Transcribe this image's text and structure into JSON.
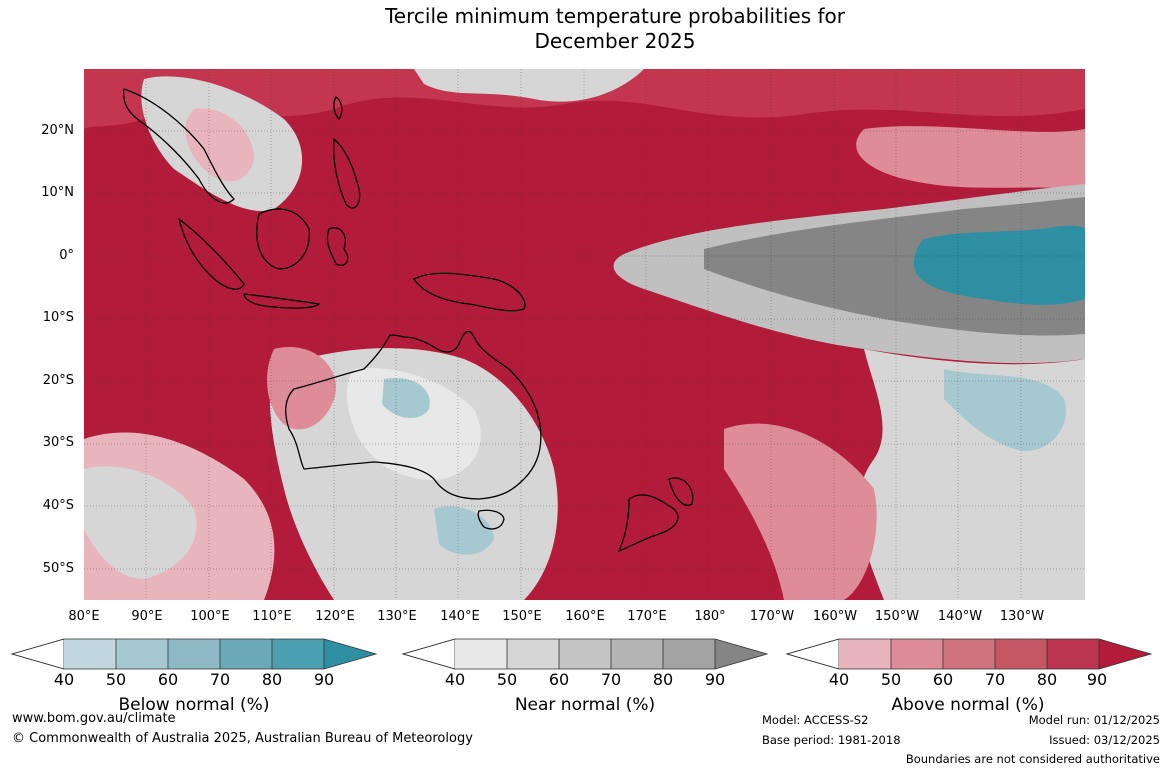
{
  "title": {
    "line1": "Tercile minimum temperature probabilities for",
    "line2": "December 2025"
  },
  "map": {
    "lat_labels": [
      "20°N",
      "10°N",
      "0°",
      "10°S",
      "20°S",
      "30°S",
      "40°S",
      "50°S"
    ],
    "lon_labels": [
      "80°E",
      "90°E",
      "100°E",
      "110°E",
      "120°E",
      "130°E",
      "140°E",
      "150°E",
      "160°E",
      "170°E",
      "180°",
      "170°W",
      "160°W",
      "150°W",
      "140°W",
      "130°W"
    ],
    "colors": {
      "above_90": "#b21c3a",
      "above_80": "#c43650",
      "above_70": "#d05e70",
      "above_60": "#dd8c98",
      "above_50": "#e8b5bd",
      "near_90": "#858585",
      "near_60": "#c0c0c0",
      "near_50": "#d6d6d6",
      "below_60": "#a6c9d1",
      "below_90": "#2e8fa3",
      "land_outline": "#000000"
    }
  },
  "colorbars": [
    {
      "label": "Below normal (%)",
      "ticks": [
        "40",
        "50",
        "60",
        "70",
        "80",
        "90"
      ],
      "colors": [
        "#bfd7dd",
        "#a6c9d1",
        "#8db9c5",
        "#6aa9b6",
        "#4ba0b0",
        "#2e8fa3"
      ]
    },
    {
      "label": "Near normal (%)",
      "ticks": [
        "40",
        "50",
        "60",
        "70",
        "80",
        "90"
      ],
      "colors": [
        "#e8e8e8",
        "#d6d6d6",
        "#c5c5c5",
        "#b4b4b4",
        "#a3a3a3",
        "#858585"
      ]
    },
    {
      "label": "Above normal (%)",
      "ticks": [
        "40",
        "50",
        "60",
        "70",
        "80",
        "90"
      ],
      "colors": [
        "#e8b5bd",
        "#dd8c98",
        "#d07580",
        "#c65866",
        "#bb3450",
        "#b21c3a"
      ]
    }
  ],
  "footer": {
    "website": "www.bom.gov.au/climate",
    "copyright": "© Commonwealth of Australia 2025, Australian Bureau of Meteorology",
    "model": "Model: ACCESS-S2",
    "base_period": "Base period: 1981-2018",
    "model_run": "Model run: 01/12/2025",
    "issued": "Issued: 03/12/2025",
    "disclaimer": "Boundaries are not considered authoritative"
  }
}
